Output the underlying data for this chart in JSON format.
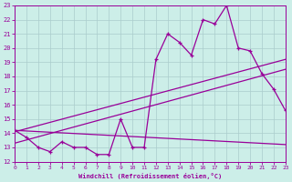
{
  "xlabel": "Windchill (Refroidissement éolien,°C)",
  "bg_color": "#cceee8",
  "line_color": "#990099",
  "grid_color": "#aacccc",
  "xmin": 0,
  "xmax": 23,
  "ymin": 12,
  "ymax": 23,
  "curve1_x": [
    0,
    1,
    2,
    3,
    4,
    5,
    6,
    7,
    8,
    9,
    10,
    11,
    12,
    13,
    14,
    15,
    16,
    17,
    18,
    19,
    20,
    21,
    22,
    23
  ],
  "curve1_y": [
    14.2,
    13.7,
    13.0,
    12.7,
    13.4,
    13.0,
    13.0,
    12.5,
    12.5,
    15.0,
    13.0,
    13.0,
    19.2,
    21.0,
    20.4,
    19.5,
    22.0,
    21.7,
    23.0,
    20.0,
    19.8,
    18.2,
    17.1,
    15.6
  ],
  "line1_x": [
    0,
    23
  ],
  "line1_y": [
    14.1,
    19.2
  ],
  "line2_x": [
    0,
    23
  ],
  "line2_y": [
    13.3,
    18.5
  ],
  "line3_x": [
    0,
    23
  ],
  "line3_y": [
    14.2,
    13.2
  ]
}
